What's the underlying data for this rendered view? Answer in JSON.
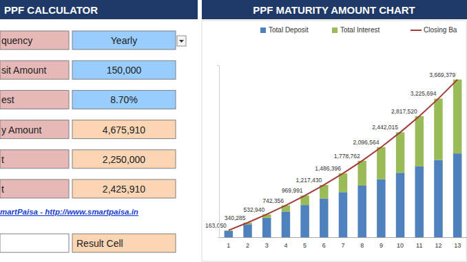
{
  "calculator": {
    "title": "PPF CALCULATOR",
    "rows": [
      {
        "label": "quency",
        "value": "Yearly",
        "color": "#99ccff"
      },
      {
        "label": "sit Amount",
        "value": "150,000",
        "color": "#99ccff"
      },
      {
        "label": "est",
        "value": "8.70%",
        "color": "#99ccff"
      },
      {
        "label": "y Amount",
        "value": "4,675,910",
        "color": "#fcd5b4"
      },
      {
        "label": "t",
        "value": "2,250,000",
        "color": "#fcd5b4"
      },
      {
        "label": "t",
        "value": "2,425,910",
        "color": "#fcd5b4"
      }
    ],
    "link": "martPaisa - http://www.smartpaisa.in",
    "key_cell": {
      "value": "Result Cell",
      "color": "#fcd5b4"
    }
  },
  "chart_data": {
    "type": "bar",
    "title": "PPF MATURITY AMOUNT CHART",
    "categories": [
      "1",
      "2",
      "3",
      "4",
      "5",
      "6",
      "7",
      "8",
      "9",
      "10",
      "11",
      "12",
      "13"
    ],
    "stacked": true,
    "data_labels": true,
    "tick_labels": "x",
    "legend": "top",
    "grid": false,
    "ylim": [
      0,
      4000000
    ],
    "yticks": [],
    "series": [
      {
        "name": "Total Deposit",
        "type": "bar",
        "color": "#4f81bd",
        "values": [
          150000,
          300000,
          450000,
          600000,
          750000,
          900000,
          1050000,
          1200000,
          1350000,
          1500000,
          1650000,
          1800000,
          1950000
        ]
      },
      {
        "name": "Total Interest",
        "type": "bar",
        "color": "#9bbb59",
        "values": [
          13050,
          40285,
          82940,
          142356,
          219991,
          317430,
          436396,
          578762,
          746564,
          942015,
          1167520,
          1425694,
          1719379
        ]
      },
      {
        "name": "Closing Ba",
        "type": "line",
        "color": "#a23b36",
        "values": [
          163050,
          340285,
          532940,
          742356,
          969991,
          1217430,
          1486396,
          1778762,
          2096564,
          2442015,
          2817520,
          3225694,
          3669379
        ],
        "value_labels": [
          "163,050",
          "340,285",
          "532,940",
          "742,356",
          "969,991",
          "1,217,430",
          "1,486,396",
          "1,778,762",
          "2,096,564",
          "2,442,015",
          "2,817,520",
          "3,225,694",
          "3,669,379"
        ]
      }
    ]
  }
}
